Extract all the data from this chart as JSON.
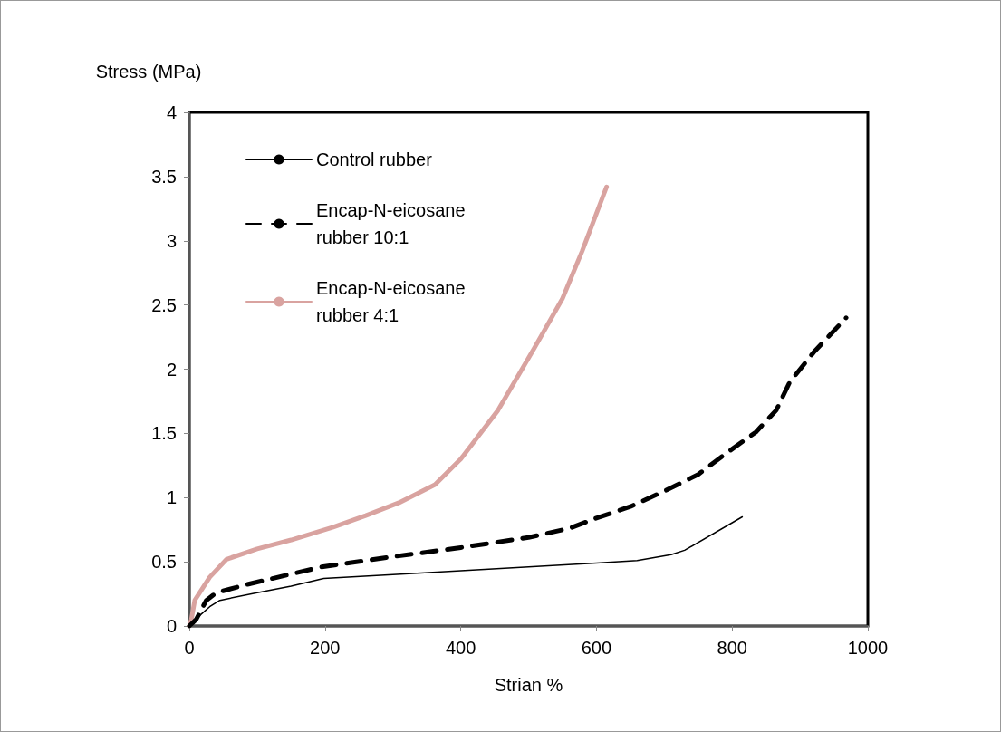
{
  "chart_data": {
    "type": "line",
    "xlabel": "Strian %",
    "ylabel": "Stress (MPa)",
    "xlim": [
      0,
      1000
    ],
    "xticks": [
      0,
      200,
      400,
      600,
      800,
      1000
    ],
    "ylim": [
      0,
      4
    ],
    "yticks": [
      0,
      0.5,
      1,
      1.5,
      2,
      2.5,
      3,
      3.5,
      4
    ],
    "grid": false,
    "legend": "top left",
    "marker": "none",
    "series": [
      {
        "name": "Control rubber",
        "color": "#000000",
        "line_style": "solid",
        "x": [
          0,
          15,
          30,
          45,
          100,
          150,
          198,
          300,
          400,
          500,
          600,
          660,
          710,
          730,
          815
        ],
        "values": [
          0,
          0.08,
          0.15,
          0.2,
          0.26,
          0.31,
          0.37,
          0.4,
          0.43,
          0.46,
          0.49,
          0.51,
          0.555,
          0.59,
          0.85
        ]
      },
      {
        "name": "Encap-N-eicosane rubber 10:1",
        "color": "#000000",
        "line_style": "dashed",
        "x": [
          0,
          10,
          25,
          40,
          90,
          195,
          300,
          400,
          500,
          560,
          600,
          650,
          700,
          750,
          790,
          835,
          865,
          885,
          920,
          968
        ],
        "values": [
          0,
          0.05,
          0.2,
          0.26,
          0.33,
          0.46,
          0.54,
          0.61,
          0.69,
          0.76,
          0.84,
          0.93,
          1.05,
          1.18,
          1.34,
          1.51,
          1.68,
          1.9,
          2.13,
          2.4
        ]
      },
      {
        "name": "Encap-N-eicosane rubber 4:1",
        "color": "#d9a3a0",
        "line_style": "solid",
        "x": [
          0,
          3,
          8,
          30,
          55,
          100,
          150,
          212,
          260,
          309,
          362,
          400,
          455,
          509,
          550,
          579,
          615
        ],
        "values": [
          0,
          0.05,
          0.2,
          0.38,
          0.52,
          0.6,
          0.67,
          0.77,
          0.86,
          0.96,
          1.1,
          1.3,
          1.68,
          2.17,
          2.55,
          2.92,
          3.42
        ]
      }
    ]
  }
}
